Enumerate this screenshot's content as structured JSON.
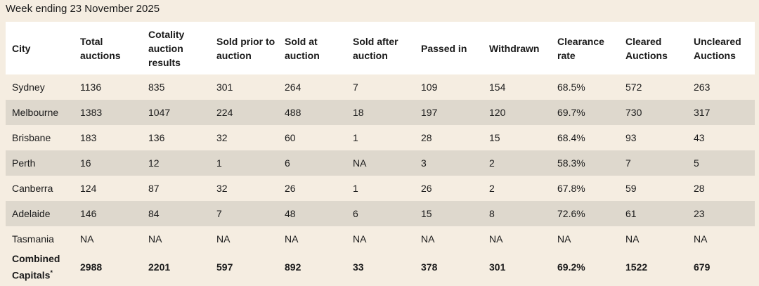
{
  "caption": "Week ending 23 November 2025",
  "columns": [
    "City",
    "Total auctions",
    "Cotality auction results",
    "Sold prior to auction",
    "Sold at auction",
    "Sold after auction",
    "Passed in",
    "Withdrawn",
    "Clearance rate",
    "Cleared Auctions",
    "Uncleared Auctions"
  ],
  "rows": [
    [
      "Sydney",
      "1136",
      "835",
      "301",
      "264",
      "7",
      "109",
      "154",
      "68.5%",
      "572",
      "263"
    ],
    [
      "Melbourne",
      "1383",
      "1047",
      "224",
      "488",
      "18",
      "197",
      "120",
      "69.7%",
      "730",
      "317"
    ],
    [
      "Brisbane",
      "183",
      "136",
      "32",
      "60",
      "1",
      "28",
      "15",
      "68.4%",
      "93",
      "43"
    ],
    [
      "Perth",
      "16",
      "12",
      "1",
      "6",
      "NA",
      "3",
      "2",
      "58.3%",
      "7",
      "5"
    ],
    [
      "Canberra",
      "124",
      "87",
      "32",
      "26",
      "1",
      "26",
      "2",
      "67.8%",
      "59",
      "28"
    ],
    [
      "Adelaide",
      "146",
      "84",
      "7",
      "48",
      "6",
      "15",
      "8",
      "72.6%",
      "61",
      "23"
    ],
    [
      "Tasmania",
      "NA",
      "NA",
      "NA",
      "NA",
      "NA",
      "NA",
      "NA",
      "NA",
      "NA",
      "NA"
    ]
  ],
  "total_row": {
    "label": "Combined Capitals",
    "footnote_mark": "*",
    "values": [
      "2988",
      "2201",
      "597",
      "892",
      "33",
      "378",
      "301",
      "69.2%",
      "1522",
      "679"
    ]
  }
}
